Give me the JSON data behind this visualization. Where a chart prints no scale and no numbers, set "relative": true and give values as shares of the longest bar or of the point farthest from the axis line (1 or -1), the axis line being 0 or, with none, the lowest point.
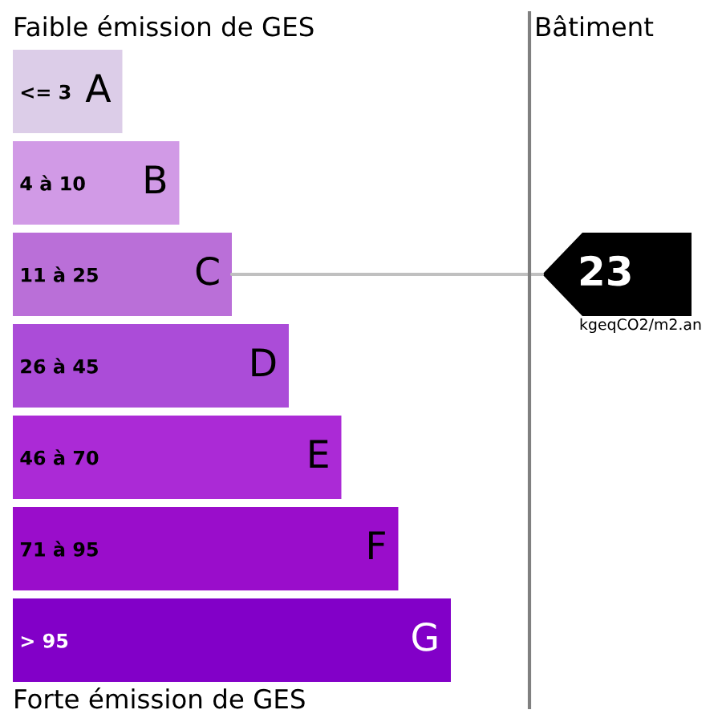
{
  "chart_data": {
    "type": "bar",
    "orientation": "horizontal",
    "relative": true,
    "title": "Faible émission de GES",
    "subtitle": "Bâtiment",
    "xlabel": "Forte émission de GES",
    "categories": [
      "A",
      "B",
      "C",
      "D",
      "E",
      "F",
      "G"
    ],
    "values": [
      0.25,
      0.38,
      0.5,
      0.63,
      0.75,
      0.88,
      1
    ],
    "colors": [
      "#dccde8",
      "#d19ae6",
      "#ba6fd8",
      "#ab4cd8",
      "#ab2ad6",
      "#9a0dcb",
      "#8200c8"
    ],
    "annotations": [
      "<= 3",
      "4 à 10",
      "11 à 25",
      "26 à 45",
      "46 à 70",
      "71 à 95",
      "> 95",
      {
        "text": "23",
        "x": 0.5,
        "y": "C"
      },
      "kgeqCO2/m2.an"
    ]
  }
}
